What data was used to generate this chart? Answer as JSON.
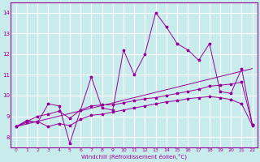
{
  "xlabel": "Windchill (Refroidissement éolien,°C)",
  "background_color": "#c8ecec",
  "grid_color": "#ffffff",
  "line_color": "#990099",
  "xlim": [
    -0.5,
    22.5
  ],
  "ylim": [
    7.5,
    14.5
  ],
  "xticks": [
    0,
    1,
    2,
    3,
    4,
    5,
    6,
    7,
    8,
    9,
    10,
    11,
    12,
    13,
    14,
    15,
    16,
    17,
    18,
    19,
    20,
    21,
    22
  ],
  "yticks": [
    8,
    9,
    10,
    11,
    12,
    13,
    14
  ],
  "series1_x": [
    0,
    1,
    2,
    3,
    4,
    5,
    6,
    7,
    8,
    9,
    10,
    11,
    12,
    13,
    14,
    15,
    16,
    17,
    18,
    19,
    20,
    21,
    22
  ],
  "series1_y": [
    8.5,
    8.8,
    8.7,
    9.6,
    9.5,
    7.7,
    9.3,
    10.9,
    9.4,
    9.3,
    12.2,
    11.0,
    12.0,
    14.0,
    13.3,
    12.5,
    12.2,
    11.7,
    12.5,
    10.2,
    10.1,
    11.3,
    8.6
  ],
  "series2_x": [
    0,
    1,
    2,
    3,
    4,
    5,
    6,
    7,
    8,
    9,
    10,
    11,
    12,
    13,
    14,
    15,
    16,
    17,
    18,
    19,
    20,
    21,
    22
  ],
  "series2_y": [
    8.5,
    8.7,
    8.75,
    8.5,
    8.65,
    8.55,
    8.85,
    9.05,
    9.1,
    9.2,
    9.3,
    9.4,
    9.5,
    9.6,
    9.7,
    9.75,
    9.85,
    9.9,
    9.95,
    9.9,
    9.8,
    9.6,
    8.55
  ],
  "series3_x": [
    0,
    1,
    2,
    3,
    4,
    5,
    6,
    7,
    8,
    9,
    10,
    11,
    12,
    13,
    14,
    15,
    16,
    17,
    18,
    19,
    20,
    21,
    22
  ],
  "series3_y": [
    8.5,
    8.75,
    9.0,
    9.1,
    9.25,
    8.9,
    9.3,
    9.5,
    9.55,
    9.55,
    9.65,
    9.75,
    9.85,
    9.9,
    10.0,
    10.1,
    10.2,
    10.3,
    10.45,
    10.5,
    10.55,
    10.65,
    8.6
  ],
  "series4_x": [
    0,
    22
  ],
  "series4_y": [
    8.5,
    11.3
  ]
}
